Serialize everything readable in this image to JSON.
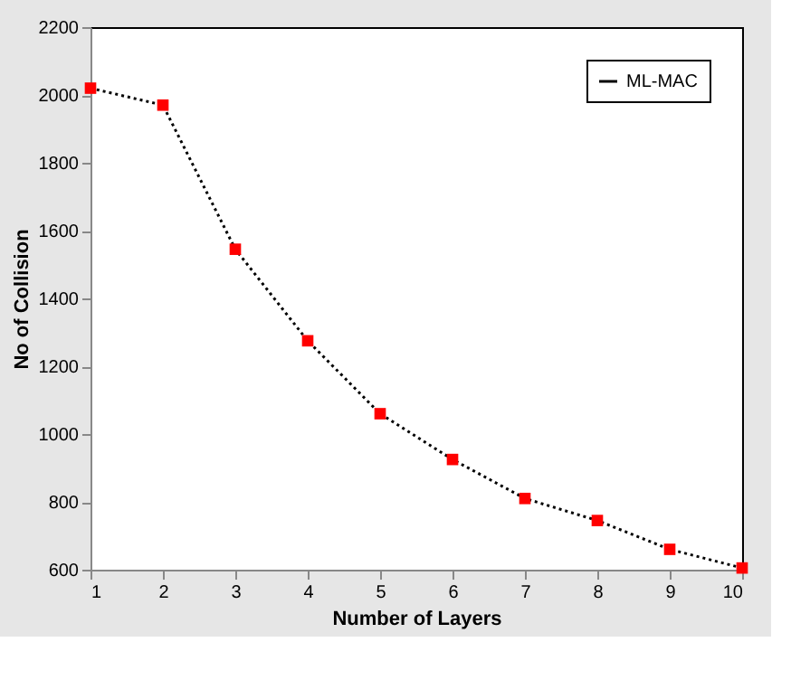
{
  "chart_data": {
    "type": "line",
    "xlabel": "Number of Layers",
    "ylabel": "No of Collision",
    "x": [
      1,
      2,
      3,
      4,
      5,
      6,
      7,
      8,
      9,
      10
    ],
    "series": [
      {
        "name": "ML-MAC",
        "color": "#ff0000",
        "values": [
          2020,
          1970,
          1545,
          1275,
          1060,
          925,
          810,
          745,
          660,
          605
        ]
      }
    ],
    "xlim": [
      1,
      10
    ],
    "xticks": [
      1,
      2,
      3,
      4,
      5,
      6,
      7,
      8,
      9,
      10
    ],
    "ylim": [
      600,
      2200
    ],
    "yticks": [
      600,
      800,
      1000,
      1200,
      1400,
      1600,
      1800,
      2000,
      2200
    ],
    "grid": false,
    "legend": "top right",
    "marker": "square",
    "line_style": "dotted"
  }
}
